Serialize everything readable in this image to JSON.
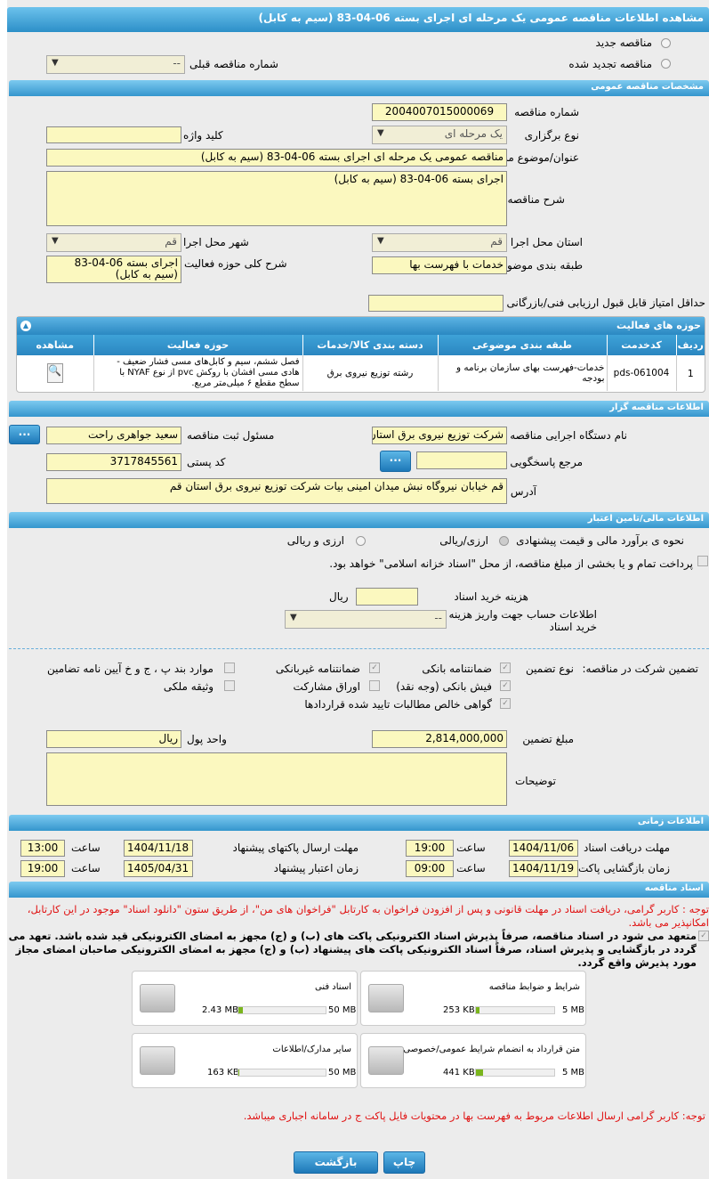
{
  "title": "مشاهده اطلاعات مناقصه عمومی یک مرحله ای اجرای بسته 06-04-83 (سیم به کابل)",
  "radios": {
    "new": "مناقصه جدید",
    "renewed": "مناقصه تجدید شده"
  },
  "prev_tender": {
    "label": "شماره مناقصه قبلی",
    "value": "--"
  },
  "general": {
    "header": "مشخصات مناقصه عمومی",
    "number_label": "شماره مناقصه",
    "number": "2004007015000069",
    "type_label": "نوع برگزاری",
    "type": "یک مرحله ای",
    "keyword_label": "کلید واژه",
    "keyword": "",
    "subject_label": "عنوان/موضوع مناقصه",
    "subject": "مناقصه عمومی یک مرحله ای اجرای بسته 06-04-83 (سیم به کابل)",
    "desc_label": "شرح مناقصه",
    "desc": "اجرای بسته 06-04-83 (سیم به کابل)",
    "province_label": "استان محل اجرا",
    "province": "قم",
    "city_label": "شهر محل اجرا",
    "city": "قم",
    "category_label": "طبقه بندی موضوعی",
    "category": "خدمات با فهرست بها",
    "scope_label": "شرح کلی حوزه فعالیت",
    "scope": "اجرای بسته 06-04-83 (سیم به کابل)",
    "min_score_label": "حداقل امتیاز قابل قبول ارزیابی فنی/بازرگانی",
    "min_score": ""
  },
  "activity": {
    "header": "حوزه های فعالیت",
    "columns": [
      "ردیف",
      "کدخدمت",
      "طبقه بندی موضوعی",
      "دسته بندی کالا/خدمات",
      "حوزه فعالیت",
      "مشاهده"
    ],
    "rows": [
      [
        "1",
        "pds-061004",
        "خدمات-فهرست بهای سازمان برنامه و بودجه",
        "رشته توزیع نیروی برق",
        "فصل ششم، سیم و کابل‌های مسی فشار ضعیف - هادی مسی افشان با روکش pvc از نوع NYAF با سطح مقطع ۶ میلی‌متر مربع."
      ]
    ]
  },
  "organizer": {
    "header": "اطلاعات مناقصه گزار",
    "org_label": "نام دستگاه اجرایی مناقصه گزار",
    "org": "شرکت توزیع نیروی برق استان قم",
    "resp_label": "مسئول ثبت مناقصه",
    "resp": "سعید جواهری راحت",
    "ref_label": "مرجع پاسخگویی",
    "ref": "",
    "postal_label": "کد پستی",
    "postal": "3717845561",
    "address_label": "آدرس",
    "address": "قم خیابان نیروگاه نبش میدان امینی بیات شرکت توزیع نیروی برق استان قم",
    "more_button": "..."
  },
  "finance": {
    "header": "اطلاعات مالی/تامین اعتبار",
    "estimate_label": "نحوه ی برآورد مالی و قیمت پیشنهادی",
    "opt1": "ارزی/ریالی",
    "opt2": "ارزی و ریالی",
    "treasury_text": "پرداخت تمام و یا بخشی از مبلغ مناقصه، از محل \"اسناد خزانه اسلامی\" خواهد بود.",
    "doc_cost_label": "هزینه خرید اسناد",
    "doc_cost": "",
    "doc_cost_unit": "ریال",
    "account_label": "اطلاعات حساب جهت واریز هزینه خرید اسناد",
    "account": "--"
  },
  "guarantee": {
    "label": "تضمین شرکت در مناقصه:",
    "type_label": "نوع تضمین",
    "items": [
      "ضمانتنامه بانکی",
      "ضمانتنامه غیربانکی",
      "موارد بند پ ، ج و خ آیین نامه تضامین",
      "فیش بانکی (وجه نقد)",
      "اوراق مشارکت",
      "وثیقه ملکی",
      "گواهی خالص مطالبات تایید شده قراردادها"
    ],
    "amount_label": "مبلغ تضمین",
    "amount": "2,814,000,000",
    "currency_label": "واحد پول",
    "currency": "ریال",
    "notes_label": "توضیحات",
    "notes": ""
  },
  "timing": {
    "header": "اطلاعات زمانی",
    "doc_deadline_label": "مهلت دریافت اسناد",
    "doc_deadline_date": "1404/11/06",
    "doc_deadline_time": "19:00",
    "submit_label": "مهلت ارسال پاکتهای پیشنهاد",
    "submit_date": "1404/11/18",
    "submit_time": "13:00",
    "open_label": "زمان بازگشایی پاکت ها",
    "open_date": "1404/11/19",
    "open_time": "09:00",
    "validity_label": "زمان اعتبار پیشنهاد",
    "validity_date": "1405/04/31",
    "validity_time": "19:00",
    "time_label": "ساعت"
  },
  "docs": {
    "header": "اسناد مناقصه",
    "notice": "توجه : کاربر گرامی، دریافت اسناد در مهلت قانونی و پس از افزودن فراخوان به کارتابل \"فراخوان های من\"، از طریق ستون \"دانلود اسناد\" موجود در این کارتابل، امکانپذیر می باشد.",
    "commit": "متعهد می شود در اسناد مناقصه، صرفاً پذیرش اسناد الکترونیکی پاکت های (ب) و (ج) مجهز به امضای الکترونیکی قید شده باشد. تعهد می گردد در بازگشایی و پذیرش اسناد، صرفاً اسناد الکترونیکی پاکت های پیشنهاد (ب) و (ج) مجهز به امضای الکترونیکی صاحبان امضای مجاز مورد پذیرش واقع گردد.",
    "files": [
      {
        "name": "شرایط و ضوابط مناقصه",
        "size": "253 KB",
        "max": "5 MB",
        "fill": 0.05
      },
      {
        "name": "اسناد فنی",
        "size": "2.43 MB",
        "max": "50 MB",
        "fill": 0.05
      },
      {
        "name": "متن قرارداد به انضمام شرایط عمومی/خصوصی",
        "size": "441 KB",
        "max": "5 MB",
        "fill": 0.09
      },
      {
        "name": "سایر مدارک/اطلاعات",
        "size": "163 KB",
        "max": "50 MB",
        "fill": 0.01
      }
    ],
    "footer_note": "توجه: کاربر گرامی ارسال اطلاعات مربوط به فهرست بها در محتویات فایل پاکت ج در سامانه اجباری میباشد."
  },
  "buttons": {
    "print": "چاپ",
    "back": "بازگشت"
  }
}
